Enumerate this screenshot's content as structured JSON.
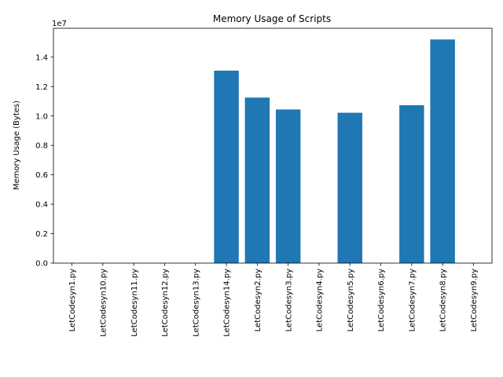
{
  "chart_data": {
    "type": "bar",
    "title": "Memory Usage of Scripts",
    "xlabel": "",
    "ylabel": "Memory Usage (Bytes)",
    "y_offset_label": "1e7",
    "y_tick_scale": 10000000,
    "ylim": [
      0,
      15960000
    ],
    "yticks": [
      0,
      2000000,
      4000000,
      6000000,
      8000000,
      10000000,
      12000000,
      14000000
    ],
    "ytick_labels": [
      "0.0",
      "0.2",
      "0.4",
      "0.6",
      "0.8",
      "1.0",
      "1.2",
      "1.4"
    ],
    "categories": [
      "LetCodesyn1.py",
      "LetCodesyn10.py",
      "LetCodesyn11.py",
      "LetCodesyn12.py",
      "LetCodesyn13.py",
      "LetCodesyn14.py",
      "LetCodesyn2.py",
      "LetCodesyn3.py",
      "LetCodesyn4.py",
      "LetCodesyn5.py",
      "LetCodesyn6.py",
      "LetCodesyn7.py",
      "LetCodesyn8.py",
      "LetCodesyn9.py"
    ],
    "values": [
      0,
      0,
      0,
      0,
      0,
      13080000,
      11250000,
      10440000,
      0,
      10220000,
      0,
      10730000,
      15200000,
      0
    ],
    "bar_color": "#1f77b4",
    "grid": false,
    "legend": "none"
  }
}
